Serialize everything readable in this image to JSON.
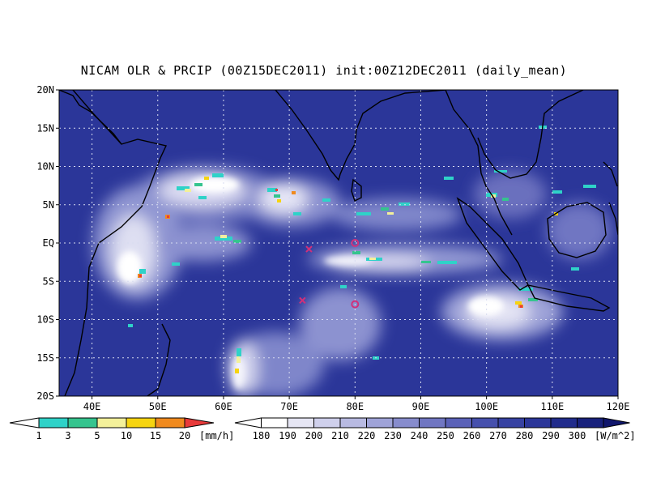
{
  "title": "NICAM OLR & PRCIP (00Z15DEC2011) init:00Z12DEC2011 (daily_mean)",
  "map": {
    "lon_range": [
      35,
      120
    ],
    "lat_range": [
      -20,
      20
    ],
    "lon_ticks": [
      {
        "value": 40,
        "label": "40E"
      },
      {
        "value": 50,
        "label": "50E"
      },
      {
        "value": 60,
        "label": "60E"
      },
      {
        "value": 70,
        "label": "70E"
      },
      {
        "value": 80,
        "label": "80E"
      },
      {
        "value": 90,
        "label": "90E"
      },
      {
        "value": 100,
        "label": "100E"
      },
      {
        "value": 110,
        "label": "110E"
      },
      {
        "value": 120,
        "label": "120E"
      }
    ],
    "lat_ticks": [
      {
        "value": 20,
        "label": "20N"
      },
      {
        "value": 15,
        "label": "15N"
      },
      {
        "value": 10,
        "label": "10N"
      },
      {
        "value": 5,
        "label": "5N"
      },
      {
        "value": 0,
        "label": "EQ"
      },
      {
        "value": -5,
        "label": "5S"
      },
      {
        "value": -10,
        "label": "10S"
      },
      {
        "value": -15,
        "label": "15S"
      },
      {
        "value": -20,
        "label": "20S"
      }
    ],
    "markers": [
      {
        "type": "x",
        "lon": 73,
        "lat": -0.8
      },
      {
        "type": "x",
        "lon": 72,
        "lat": -7.5
      },
      {
        "type": "o",
        "lon": 80,
        "lat": 0
      },
      {
        "type": "o",
        "lon": 80,
        "lat": -8
      }
    ],
    "marker_color": "#d0307a"
  },
  "precip_legend": {
    "labels": [
      "1",
      "3",
      "5",
      "10",
      "15",
      "20"
    ],
    "unit": "[mm/h]",
    "colors": [
      "#2fd2c8",
      "#35c48e",
      "#f3f09a",
      "#f6d410",
      "#f08a1e",
      "#e83a3a"
    ]
  },
  "olr_legend": {
    "labels": [
      "180",
      "190",
      "200",
      "210",
      "220",
      "230",
      "240",
      "250",
      "260",
      "270",
      "280",
      "290",
      "300"
    ],
    "unit": "[W/m^2]",
    "colors": [
      "#ffffff",
      "#e6e6f4",
      "#cfd0ec",
      "#b8bae2",
      "#9fa3d8",
      "#878ccd",
      "#7076c2",
      "#5a61b8",
      "#4650ad",
      "#3742a2",
      "#2b3699",
      "#212c8c",
      "#18217c",
      "#10166c"
    ]
  }
}
